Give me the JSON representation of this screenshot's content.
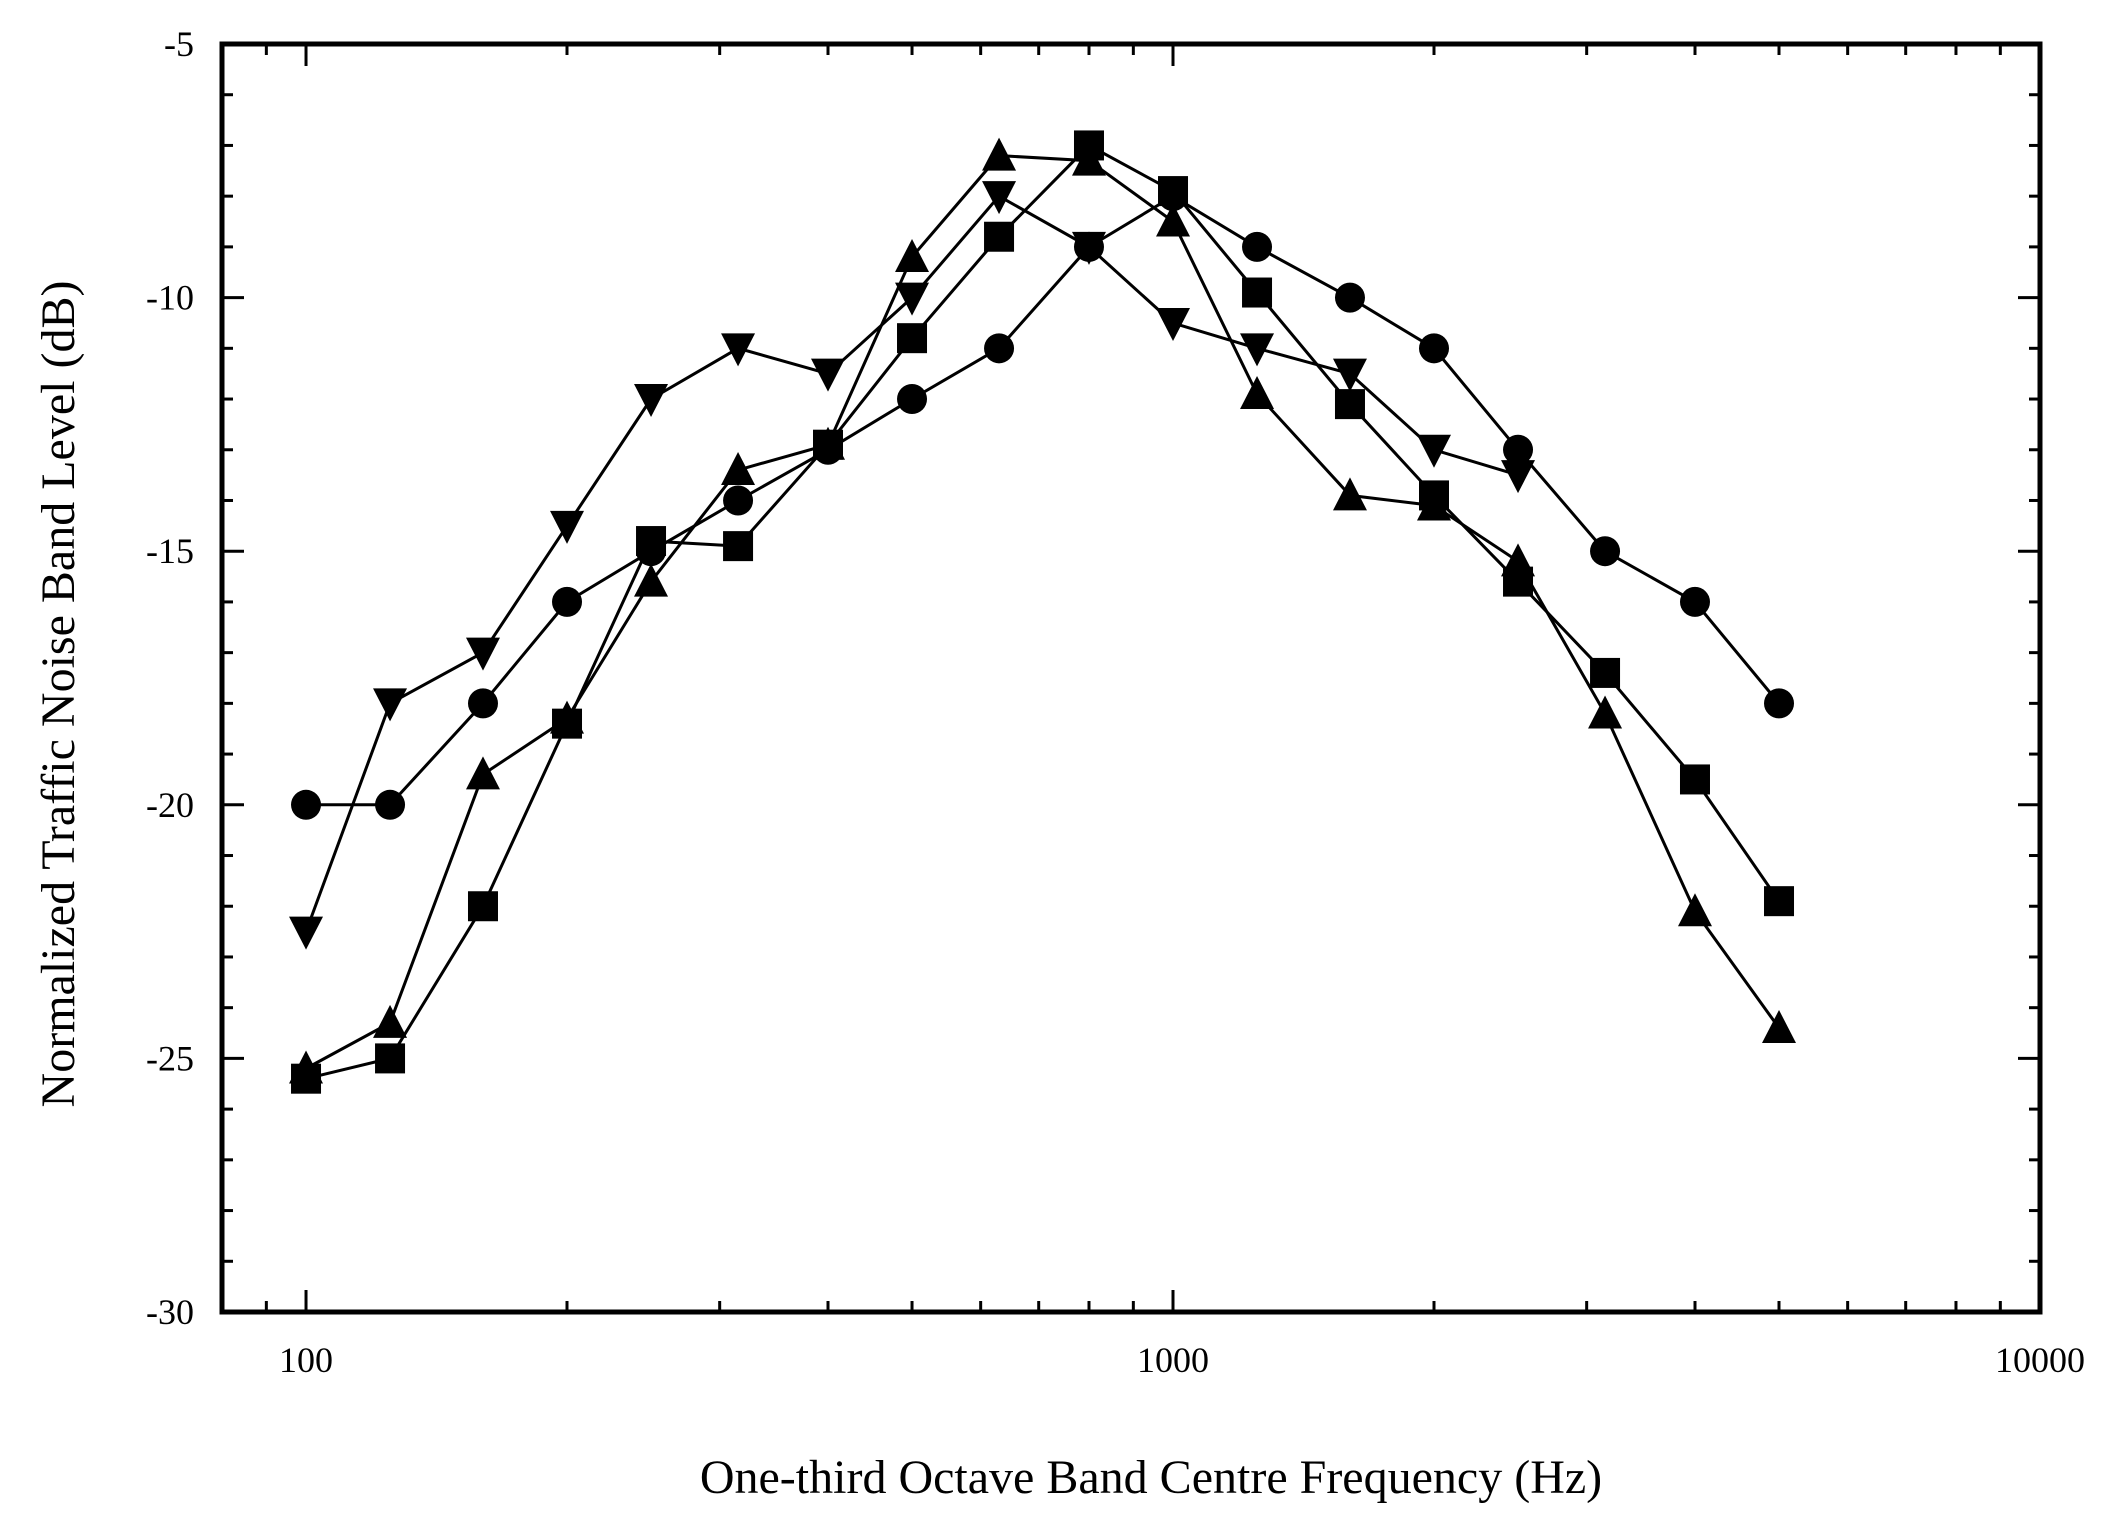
{
  "chart_data": {
    "type": "line",
    "title": "",
    "xlabel": "One-third Octave Band Centre Frequency (Hz)",
    "ylabel": "Normalized Traffic Noise Band Level (dB)",
    "xscale": "log",
    "xlim": [
      80,
      10000
    ],
    "ylim": [
      -30,
      -5
    ],
    "xticks": [
      100,
      1000,
      10000
    ],
    "xtick_labels": [
      "100",
      "1000",
      "10000"
    ],
    "yticks": [
      -5,
      -10,
      -15,
      -20,
      -25,
      -30
    ],
    "ytick_labels": [
      "-5",
      "-10",
      "-15",
      "-20",
      "-25",
      "-30"
    ],
    "grid": false,
    "legend": "none",
    "x": [
      100,
      125,
      160,
      200,
      250,
      315,
      400,
      500,
      630,
      800,
      1000,
      1250,
      1600,
      2000,
      2500,
      3150,
      4000,
      5000
    ],
    "series": [
      {
        "marker": "circle",
        "values": [
          -20,
          -20,
          -18,
          -16,
          -15,
          -14,
          -13,
          -12,
          -11,
          -9,
          -8,
          -9,
          -10,
          -11,
          -13,
          -15,
          -16,
          -18
        ]
      },
      {
        "marker": "triangle-down",
        "values": [
          -22.5,
          -18,
          -17,
          -14.5,
          -12,
          -11,
          -11.5,
          -10,
          -8,
          -9,
          -10.5,
          -11,
          -11.5,
          -13,
          -13.5,
          null,
          null,
          null
        ]
      },
      {
        "marker": "triangle-up",
        "values": [
          -25.2,
          -24.3,
          -19.4,
          -18.3,
          -15.6,
          -13.4,
          -12.9,
          -9.2,
          -7.2,
          -7.3,
          -8.5,
          -11.9,
          -13.9,
          -14.1,
          -15.2,
          -18.2,
          -22.1,
          -24.4
        ]
      },
      {
        "marker": "square",
        "values": [
          -25.4,
          -25,
          -22,
          -18.4,
          -14.8,
          -14.9,
          -12.9,
          -10.8,
          -8.8,
          -7,
          -7.9,
          -9.9,
          -12.1,
          -13.9,
          -15.6,
          -17.4,
          -19.5,
          -21.9
        ]
      }
    ]
  }
}
